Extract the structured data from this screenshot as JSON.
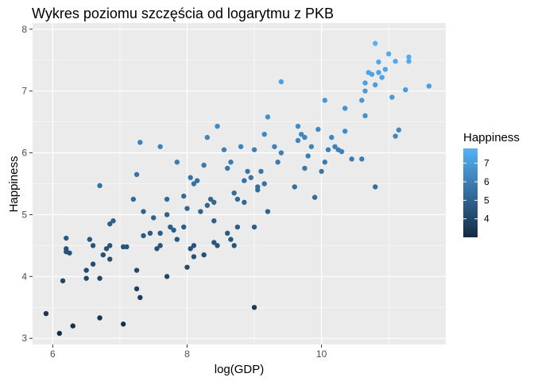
{
  "chart_data": {
    "type": "scatter",
    "title": "Wykres poziomu szczęścia od  logarytmu z PKB",
    "xlabel": "log(GDP)",
    "ylabel": "Happiness",
    "xlim": [
      5.7,
      11.85
    ],
    "ylim": [
      2.9,
      8.1
    ],
    "x_ticks": [
      6,
      8,
      10
    ],
    "y_ticks": [
      3,
      4,
      5,
      6,
      7,
      8
    ],
    "grid": true,
    "legend": {
      "title": "Happiness",
      "placement": "right",
      "type": "colorbar",
      "ticks": [
        4,
        5,
        6,
        7
      ],
      "range": [
        3.0,
        7.8
      ],
      "color_low": "#132B43",
      "color_high": "#56B1F7"
    },
    "colors": {
      "panel_background": "#EBEBEB",
      "grid_major": "#FFFFFF"
    },
    "points": [
      [
        5.9,
        3.4
      ],
      [
        6.1,
        3.08
      ],
      [
        6.3,
        3.2
      ],
      [
        6.7,
        3.33
      ],
      [
        7.05,
        3.23
      ],
      [
        9.0,
        3.5
      ],
      [
        6.15,
        3.93
      ],
      [
        6.5,
        3.97
      ],
      [
        6.7,
        3.97
      ],
      [
        7.25,
        3.8
      ],
      [
        7.3,
        3.66
      ],
      [
        7.7,
        4.0
      ],
      [
        6.2,
        4.62
      ],
      [
        6.2,
        4.45
      ],
      [
        6.25,
        4.38
      ],
      [
        6.2,
        4.4
      ],
      [
        6.5,
        4.1
      ],
      [
        6.55,
        4.6
      ],
      [
        6.6,
        4.5
      ],
      [
        6.6,
        4.2
      ],
      [
        6.75,
        4.35
      ],
      [
        6.8,
        4.45
      ],
      [
        6.85,
        4.28
      ],
      [
        6.85,
        4.5
      ],
      [
        6.85,
        4.85
      ],
      [
        6.9,
        4.9
      ],
      [
        7.1,
        4.48
      ],
      [
        7.25,
        4.1
      ],
      [
        7.35,
        4.66
      ],
      [
        7.45,
        4.7
      ],
      [
        7.5,
        4.95
      ],
      [
        7.55,
        4.45
      ],
      [
        7.6,
        4.5
      ],
      [
        7.6,
        4.7
      ],
      [
        7.7,
        5.25
      ],
      [
        7.7,
        5.0
      ],
      [
        7.75,
        4.8
      ],
      [
        7.8,
        4.75
      ],
      [
        7.85,
        4.6
      ],
      [
        7.95,
        4.8
      ],
      [
        8.0,
        4.15
      ],
      [
        8.05,
        4.45
      ],
      [
        8.1,
        4.32
      ],
      [
        8.1,
        4.5
      ],
      [
        8.25,
        4.35
      ],
      [
        8.4,
        4.55
      ],
      [
        8.45,
        4.5
      ],
      [
        8.6,
        4.7
      ],
      [
        8.65,
        4.6
      ],
      [
        8.7,
        4.5
      ],
      [
        8.75,
        4.8
      ],
      [
        9.0,
        4.8
      ],
      [
        6.7,
        5.47
      ],
      [
        7.05,
        4.48
      ],
      [
        7.2,
        5.25
      ],
      [
        7.25,
        5.65
      ],
      [
        7.3,
        6.17
      ],
      [
        7.35,
        5.05
      ],
      [
        7.6,
        6.1
      ],
      [
        7.85,
        5.85
      ],
      [
        7.95,
        5.3
      ],
      [
        8.0,
        5.1
      ],
      [
        8.05,
        5.6
      ],
      [
        8.1,
        5.5
      ],
      [
        8.15,
        5.55
      ],
      [
        8.2,
        5.05
      ],
      [
        8.25,
        5.8
      ],
      [
        8.3,
        5.15
      ],
      [
        8.35,
        5.25
      ],
      [
        8.4,
        5.2
      ],
      [
        8.4,
        4.9
      ],
      [
        8.3,
        6.25
      ],
      [
        8.45,
        6.43
      ],
      [
        8.55,
        6.05
      ],
      [
        8.6,
        5.75
      ],
      [
        8.65,
        5.85
      ],
      [
        8.7,
        5.35
      ],
      [
        8.75,
        5.25
      ],
      [
        8.8,
        6.1
      ],
      [
        8.85,
        5.2
      ],
      [
        8.85,
        5.55
      ],
      [
        8.9,
        5.7
      ],
      [
        8.95,
        5.6
      ],
      [
        9.0,
        6.05
      ],
      [
        9.05,
        5.45
      ],
      [
        9.05,
        5.4
      ],
      [
        9.1,
        5.7
      ],
      [
        9.15,
        5.5
      ],
      [
        9.15,
        6.3
      ],
      [
        9.2,
        5.05
      ],
      [
        9.2,
        6.58
      ],
      [
        9.3,
        6.1
      ],
      [
        9.35,
        5.85
      ],
      [
        9.4,
        6.0
      ],
      [
        9.4,
        7.15
      ],
      [
        9.6,
        5.45
      ],
      [
        9.65,
        6.43
      ],
      [
        9.65,
        6.2
      ],
      [
        9.7,
        6.3
      ],
      [
        9.75,
        6.25
      ],
      [
        9.75,
        5.75
      ],
      [
        9.8,
        5.95
      ],
      [
        9.85,
        6.1
      ],
      [
        9.9,
        5.28
      ],
      [
        9.95,
        6.38
      ],
      [
        10.0,
        5.7
      ],
      [
        10.05,
        6.85
      ],
      [
        10.05,
        5.85
      ],
      [
        10.1,
        6.05
      ],
      [
        10.15,
        6.25
      ],
      [
        10.2,
        6.1
      ],
      [
        10.25,
        6.05
      ],
      [
        10.3,
        6.02
      ],
      [
        10.35,
        6.35
      ],
      [
        10.35,
        6.72
      ],
      [
        10.45,
        5.9
      ],
      [
        10.6,
        6.85
      ],
      [
        10.6,
        5.9
      ],
      [
        10.65,
        6.6
      ],
      [
        10.65,
        7.0
      ],
      [
        10.65,
        7.13
      ],
      [
        10.7,
        7.3
      ],
      [
        10.75,
        7.27
      ],
      [
        10.8,
        7.77
      ],
      [
        10.8,
        5.45
      ],
      [
        10.8,
        7.1
      ],
      [
        10.85,
        7.3
      ],
      [
        10.85,
        7.47
      ],
      [
        10.9,
        7.22
      ],
      [
        10.95,
        7.35
      ],
      [
        11.0,
        7.6
      ],
      [
        11.05,
        6.9
      ],
      [
        11.1,
        7.48
      ],
      [
        11.1,
        6.27
      ],
      [
        11.15,
        6.37
      ],
      [
        11.25,
        7.02
      ],
      [
        11.3,
        7.55
      ],
      [
        11.3,
        7.48
      ],
      [
        11.6,
        7.08
      ]
    ]
  }
}
